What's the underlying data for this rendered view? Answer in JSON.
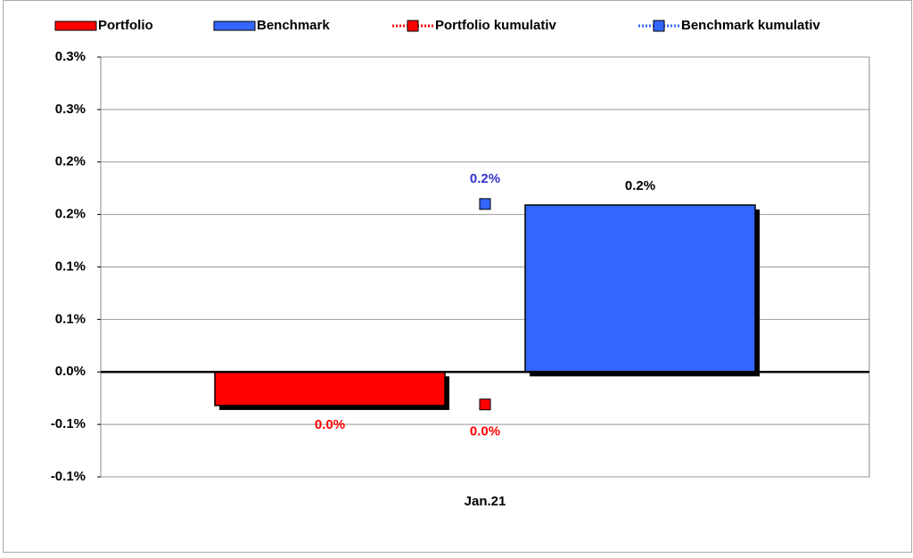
{
  "chart_data": {
    "type": "bar",
    "categories": [
      "Jan.21"
    ],
    "series": [
      {
        "name": "Portfolio",
        "type": "bar",
        "color": "#ff0000",
        "label_color": "#ff0000",
        "values": [
          -0.032
        ],
        "value_labels": [
          "0.0%"
        ]
      },
      {
        "name": "Benchmark",
        "type": "bar",
        "color": "#3366ff",
        "label_color": "#000000",
        "values": [
          0.159
        ],
        "value_labels": [
          "0.2%"
        ]
      },
      {
        "name": "Portfolio kumulativ",
        "type": "line",
        "color": "#ff0000",
        "label_color": "#ff0000",
        "values": [
          -0.031
        ],
        "value_labels": [
          "0.0%"
        ]
      },
      {
        "name": "Benchmark kumulativ",
        "type": "line",
        "color": "#3366ff",
        "label_color": "#3333cc",
        "values": [
          0.16
        ],
        "value_labels": [
          "0.2%"
        ]
      }
    ],
    "ylim": [
      -0.1,
      0.3
    ],
    "yticks": [
      {
        "value": -0.1,
        "label": "-0.1%"
      },
      {
        "value": -0.05,
        "label": "-0.1%"
      },
      {
        "value": 0,
        "label": "0.0%"
      },
      {
        "value": 0.05,
        "label": "0.1%"
      },
      {
        "value": 0.1,
        "label": "0.1%"
      },
      {
        "value": 0.15,
        "label": "0.2%"
      },
      {
        "value": 0.2,
        "label": "0.2%"
      },
      {
        "value": 0.25,
        "label": "0.3%"
      },
      {
        "value": 0.3,
        "label": "0.3%"
      }
    ],
    "grid": true,
    "legend": "top"
  }
}
